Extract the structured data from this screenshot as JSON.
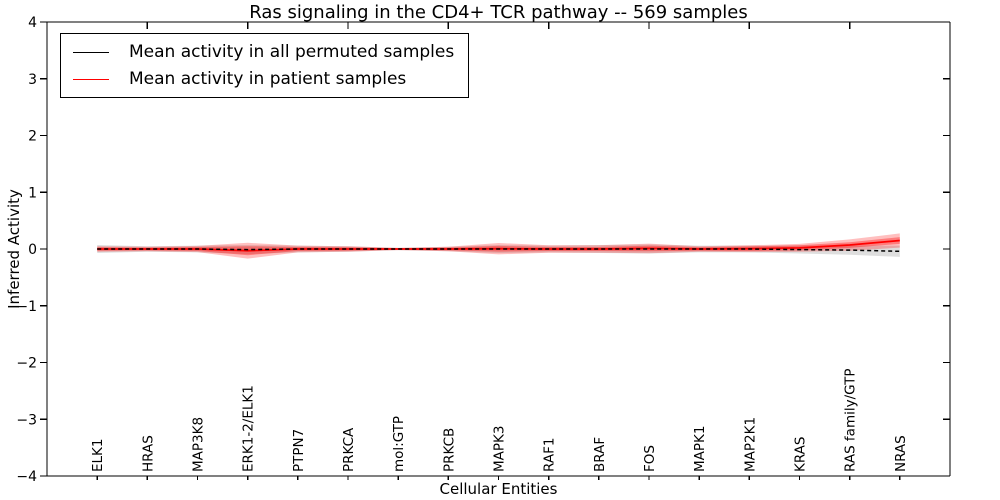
{
  "figure": {
    "title": "Ras signaling in the CD4+ TCR pathway -- 569 samples",
    "xlabel": "Cellular Entities",
    "ylabel": "Inferred Activity"
  },
  "legend": {
    "entries": [
      {
        "label": "Mean activity in all permuted samples",
        "color": "#000000"
      },
      {
        "label": "Mean activity in patient samples",
        "color": "#ff0000"
      }
    ]
  },
  "chart_data": {
    "type": "line",
    "title": "Ras signaling in the CD4+ TCR pathway -- 569 samples",
    "xlabel": "Cellular Entities",
    "ylabel": "Inferred Activity",
    "xlim": [
      0,
      18
    ],
    "ylim": [
      -4,
      4
    ],
    "grid": false,
    "legend_position": "upper left",
    "yticks": [
      4,
      3,
      2,
      1,
      0,
      -1,
      -2,
      -3,
      -4
    ],
    "ytick_labels": [
      "4",
      "3",
      "2",
      "1",
      "0",
      "−1",
      "−2",
      "−3",
      "−4"
    ],
    "top_xticks": [
      2,
      4,
      6,
      8,
      10,
      12,
      14,
      16
    ],
    "categories": [
      "ELK1",
      "HRAS",
      "MAP3K8",
      "ERK1-2/ELK1",
      "PTPN7",
      "PRKCA",
      "mol:GTP",
      "PRKCB",
      "MAPK3",
      "RAF1",
      "BRAF",
      "FOS",
      "MAPK1",
      "MAP2K1",
      "KRAS",
      "RAS family/GTP",
      "NRAS"
    ],
    "series": [
      {
        "name": "Mean activity in all permuted samples",
        "color": "#000000",
        "line_style": "dashed",
        "values": [
          0,
          0,
          0,
          -0.01,
          0,
          0,
          0,
          0,
          0,
          0,
          0,
          0,
          0,
          0,
          -0.01,
          -0.02,
          -0.04
        ],
        "band_half_width": [
          0.07,
          0.05,
          0.06,
          0.08,
          0.06,
          0.05,
          0.02,
          0.04,
          0.07,
          0.06,
          0.07,
          0.08,
          0.06,
          0.06,
          0.07,
          0.08,
          0.1
        ],
        "band_color": "#888888",
        "band_opacity": 0.28
      },
      {
        "name": "Mean activity in patient samples",
        "color": "#ff0000",
        "line_style": "solid",
        "values": [
          0,
          0,
          0,
          -0.03,
          0,
          0,
          0,
          0,
          0.005,
          0,
          0,
          0.01,
          0,
          0.005,
          0.02,
          0.07,
          0.15
        ],
        "band_inner_half_width": [
          0.03,
          0.025,
          0.035,
          0.08,
          0.035,
          0.03,
          0.012,
          0.025,
          0.05,
          0.035,
          0.035,
          0.05,
          0.03,
          0.04,
          0.045,
          0.05,
          0.06
        ],
        "band_outer_half_width": [
          0.05,
          0.04,
          0.055,
          0.14,
          0.06,
          0.05,
          0.02,
          0.04,
          0.1,
          0.065,
          0.065,
          0.085,
          0.05,
          0.06,
          0.07,
          0.1,
          0.125
        ],
        "band_color": "#ff0000",
        "band_opacity_outer": 0.25,
        "band_opacity_inner": 0.35
      }
    ]
  }
}
